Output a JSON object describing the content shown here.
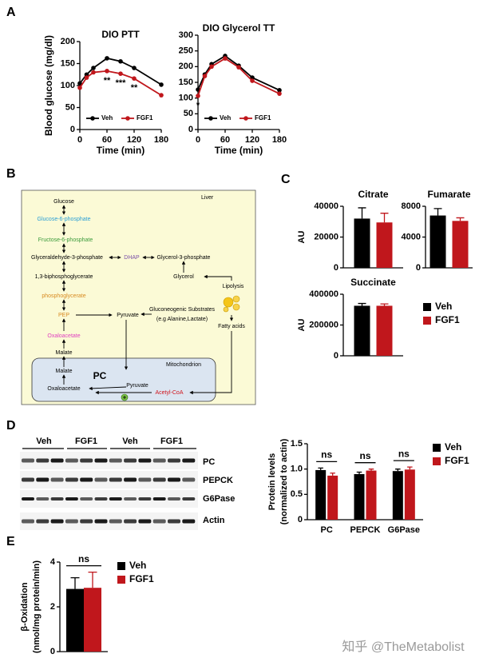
{
  "panel_labels": [
    "A",
    "B",
    "C",
    "D",
    "E"
  ],
  "chart_data": [
    {
      "type": "line",
      "title": "DIO PTT",
      "x_label": "Time (min)",
      "y_label": "Blood glucose (mg/dl)",
      "x": [
        0,
        15,
        30,
        60,
        90,
        120,
        180
      ],
      "xlim": [
        0,
        180
      ],
      "xticks": [
        0,
        60,
        120,
        180
      ],
      "ylim": [
        0,
        200
      ],
      "yticks": [
        0,
        50,
        100,
        150,
        200
      ],
      "legend": "lower left",
      "series": [
        {
          "name": "Veh",
          "color": "#000000",
          "values": [
            105,
            125,
            140,
            162,
            155,
            140,
            102
          ]
        },
        {
          "name": "FGF1",
          "color": "#c0171c",
          "values": [
            95,
            118,
            130,
            133,
            127,
            116,
            78
          ]
        }
      ],
      "annotations": [
        {
          "x": 60,
          "text": "**"
        },
        {
          "x": 90,
          "text": "***"
        },
        {
          "x": 120,
          "text": "**"
        }
      ]
    },
    {
      "type": "line",
      "title": "DIO Glycerol TT",
      "x_label": "Time (min)",
      "x": [
        0,
        15,
        30,
        60,
        90,
        120,
        180
      ],
      "xlim": [
        0,
        180
      ],
      "xticks": [
        0,
        60,
        120,
        180
      ],
      "ylim": [
        0,
        300
      ],
      "yticks": [
        0,
        50,
        100,
        150,
        200,
        250,
        300
      ],
      "legend": "lower left",
      "series": [
        {
          "name": "Veh",
          "color": "#000000",
          "values": [
            127,
            175,
            208,
            234,
            203,
            165,
            125
          ]
        },
        {
          "name": "FGF1",
          "color": "#c0171c",
          "values": [
            107,
            170,
            200,
            226,
            198,
            155,
            114
          ]
        }
      ],
      "annotations": [
        {
          "x": 0,
          "text": "*"
        }
      ]
    },
    {
      "type": "bar_panels",
      "legend": "right",
      "series": [
        {
          "name": "Veh",
          "color": "#000000"
        },
        {
          "name": "FGF1",
          "color": "#c0171c"
        }
      ],
      "subplots": [
        {
          "title": "Citrate",
          "y_label": "AU",
          "ylim": [
            0,
            40000
          ],
          "yticks": [
            0,
            20000,
            40000
          ],
          "values": [
            32000,
            29500
          ],
          "errors": [
            7000,
            6000
          ]
        },
        {
          "title": "Fumarate",
          "ylim": [
            0,
            8000
          ],
          "yticks": [
            0,
            4000,
            8000
          ],
          "values": [
            6800,
            6100
          ],
          "errors": [
            900,
            400
          ]
        },
        {
          "title": "Succinate",
          "y_label": "AU",
          "ylim": [
            0,
            400000
          ],
          "yticks": [
            0,
            200000,
            400000
          ],
          "values": [
            325000,
            325000
          ],
          "errors": [
            15000,
            12000
          ]
        }
      ]
    },
    {
      "type": "bar",
      "y_label": [
        "Protein levels",
        "(normalized to actin)"
      ],
      "categories": [
        "PC",
        "PEPCK",
        "G6Pase"
      ],
      "ylim": [
        0,
        1.5
      ],
      "yticks": [
        0,
        0.5,
        {
          "value": 1,
          "label": "1.0"
        },
        1.5
      ],
      "legend": "right",
      "series": [
        {
          "name": "Veh",
          "color": "#000000",
          "values": [
            0.98,
            0.9,
            0.96
          ],
          "errors": [
            0.04,
            0.04,
            0.04
          ]
        },
        {
          "name": "FGF1",
          "color": "#c0171c",
          "values": [
            0.87,
            0.97,
            0.99
          ],
          "errors": [
            0.05,
            0.03,
            0.05
          ]
        }
      ],
      "annotations": [
        "ns",
        "ns",
        "ns"
      ]
    },
    {
      "type": "bar",
      "y_label": [
        "β-Oxidation",
        "(nmol/mg protein/min)"
      ],
      "ylim": [
        0,
        4
      ],
      "yticks": [
        0,
        2,
        4
      ],
      "legend": "right",
      "series": [
        {
          "name": "Veh",
          "color": "#000000",
          "values": [
            2.8
          ],
          "errors": [
            0.5
          ]
        },
        {
          "name": "FGF1",
          "color": "#c0171c",
          "values": [
            2.85
          ],
          "errors": [
            0.7
          ]
        }
      ],
      "annotations": [
        "ns"
      ]
    }
  ],
  "diagram": {
    "nodes": [
      "Liver",
      "Glucose",
      "Glucose-6-phosphate",
      "Fructose-6-phosphate",
      "Glyceraldehyde-3-phosphate",
      "DHAP",
      "Glycerol-3-phosphate",
      "1,3-biphosphoglycerate",
      "Glycerol",
      "phosphoglycerate",
      "Lipolysis",
      "PEP",
      "Pyruvate",
      "Gluconeogenic Substrates",
      "(e.g Alanine,Lactate)",
      "Fatty acids",
      "Oxaloacetate",
      "Malate",
      "Mitochondrion",
      "Malate",
      "PC",
      "Oxaloacetate",
      "Pyruvate",
      "Acetyl-CoA"
    ]
  },
  "blot": {
    "lanes": [
      "Veh",
      "FGF1",
      "Veh",
      "FGF1"
    ],
    "proteins": [
      "PC",
      "PEPCK",
      "G6Pase",
      "Actin"
    ]
  },
  "watermark": "知乎 @TheMetabolist"
}
